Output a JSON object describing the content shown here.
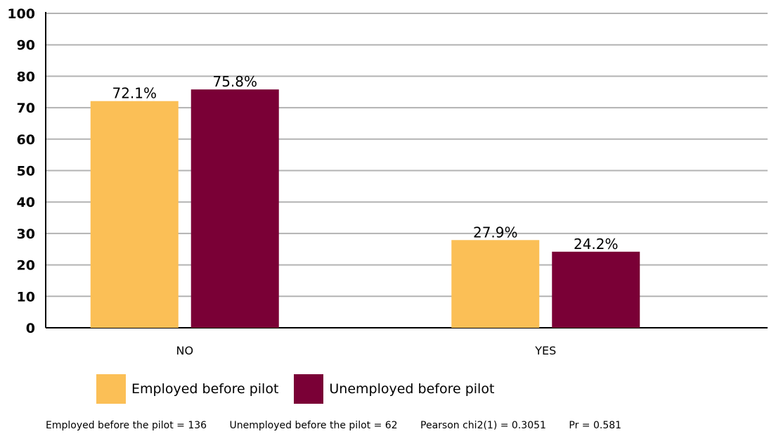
{
  "chart_data": {
    "type": "bar",
    "categories": [
      "NO",
      "YES"
    ],
    "series": [
      {
        "name": "Employed before pilot",
        "values": [
          72.1,
          27.9
        ],
        "color": "#FBBF56"
      },
      {
        "name": "Unemployed before pilot",
        "values": [
          75.8,
          24.2
        ],
        "color": "#7A0036"
      }
    ],
    "data_labels": [
      [
        "72.1%",
        "27.9%"
      ],
      [
        "75.8%",
        "24.2%"
      ]
    ],
    "yticks": [
      "0",
      "10",
      "20",
      "30",
      "40",
      "50",
      "60",
      "70",
      "80",
      "90",
      "100"
    ],
    "ylim": [
      0,
      100
    ],
    "grid": true,
    "legend_position": "bottom",
    "title": "",
    "xlabel": "",
    "ylabel": ""
  },
  "footnote": {
    "employed_n": "Employed before the pilot = 136",
    "unemployed_n": "Unemployed before the pilot = 62",
    "chi2": "Pearson chi2(1) = 0.3051",
    "pr": "Pr = 0.581"
  }
}
